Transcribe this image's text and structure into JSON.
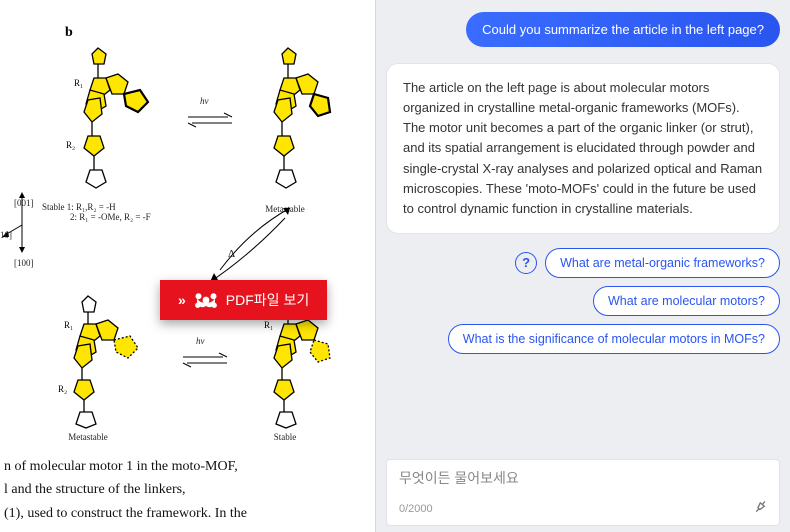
{
  "left": {
    "figure_label": "b",
    "axis_z": "[001]",
    "axis_y": "10]",
    "axis_x": "[100]",
    "r1": "R₁",
    "r2": "R₂",
    "stable_caption": "Stable 1: R₁,R₂ = -H",
    "stable_caption_2": "2: R₁ = -OMe, R₂ = -F",
    "metastable": "Metastable",
    "stable": "Stable",
    "hv": "hv",
    "delta": "Δ",
    "caption_line1": "n of molecular motor 1 in the moto-MOF,",
    "caption_line2": "l and the structure of the linkers,",
    "caption_line3": "(1), used to construct the framework. In the",
    "pdf_button": "PDF파일 보기"
  },
  "chat": {
    "user_message": "Could you summarize the article in the left page?",
    "ai_message": "The article on the left page is about molecular motors organized in crystalline metal-organic frameworks (MOFs). The motor unit becomes a part of the organic linker (or strut), and its spatial arrangement is elucidated through powder and single-crystal X-ray analyses and polarized optical and Raman microscopies. These 'moto-MOFs' could in the future be used to control dynamic function in crystalline materials.",
    "suggestions": [
      "What are metal-organic frameworks?",
      "What are molecular motors?",
      "What is the significance of molecular motors in MOFs?"
    ],
    "input_placeholder": "무엇이든 물어보세요",
    "char_count": "0/2000"
  },
  "colors": {
    "mol_fill": "#ffe600",
    "mol_stroke": "#000000",
    "pdf_red": "#e6131e",
    "chip_blue": "#2a55f0",
    "user_bubble": "#2a55f0"
  }
}
